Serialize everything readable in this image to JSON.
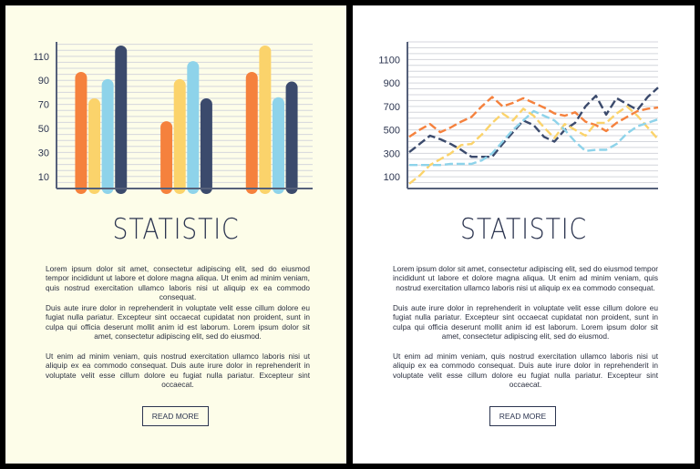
{
  "cards": [
    {
      "title": "STATISTIC",
      "paragraphs": [
        "Lorem ipsum dolor sit amet, consectetur adipiscing elit, sed do eiusmod tempor incididunt ut labore et dolore magna aliqua. Ut enim ad minim veniam, quis nostrud exercitation ullamco laboris nisi ut aliquip ex ea commodo consequat.",
        "Duis aute irure dolor in reprehenderit in voluptate velit esse cillum dolore eu fugiat nulla pariatur. Excepteur sint occaecat cupidatat non proident, sunt in culpa qui officia deserunt mollit anim id est laborum. Lorem ipsum dolor sit amet, consectetur adipiscing elit, sed do eiusmod.",
        "Ut enim ad minim veniam, quis nostrud exercitation ullamco laboris nisi ut aliquip ex ea commodo consequat. Duis aute irure dolor in reprehenderit in voluptate velit esse cillum dolore eu fugiat nulla pariatur. Excepteur sint occaecat."
      ],
      "button_label": "READ MORE"
    },
    {
      "title": "STATISTIC",
      "paragraphs": [
        "Lorem ipsum dolor sit amet, consectetur adipiscing elit, sed do eiusmod tempor incididunt ut labore et dolore magna aliqua. Ut enim ad minim veniam, quis nostrud exercitation ullamco laboris nisi ut aliquip ex ea commodo consequat.",
        "Duis aute irure dolor in reprehenderit in voluptate velit esse cillum dolore eu fugiat nulla pariatur. Excepteur sint occaecat cupidatat non proident, sunt in culpa qui officia deserunt mollit anim id est laborum. Lorem ipsum dolor sit amet, consectetur adipiscing elit, sed do eiusmod.",
        "Ut enim ad minim veniam, quis nostrud exercitation ullamco laboris nisi ut aliquip ex ea commodo consequat. Duis aute irure dolor in reprehenderit in voluptate velit esse cillum dolore eu fugiat nulla pariatur. Excepteur sint occaecat."
      ],
      "button_label": "READ MORE"
    }
  ],
  "chart_data": [
    {
      "type": "bar",
      "title": "",
      "xlabel": "",
      "ylabel": "",
      "categories": [
        "",
        "",
        ""
      ],
      "ylim": [
        0,
        122
      ],
      "yticks": [
        10,
        30,
        50,
        70,
        90,
        110
      ],
      "grid": true,
      "series": [
        {
          "color": "#f5813d",
          "values": [
            97,
            56,
            97
          ]
        },
        {
          "color": "#fbd36b",
          "values": [
            75,
            91,
            119
          ]
        },
        {
          "color": "#8ed3ea",
          "values": [
            91,
            106,
            76
          ]
        },
        {
          "color": "#3b4a6c",
          "values": [
            119,
            75,
            89
          ]
        }
      ]
    },
    {
      "type": "line",
      "title": "",
      "xlabel": "",
      "ylabel": "",
      "ylim": [
        0,
        1250
      ],
      "yticks": [
        100,
        300,
        500,
        700,
        900,
        1100
      ],
      "grid": true,
      "line_style": "dashed",
      "x": [
        0,
        1,
        2,
        3,
        4,
        5,
        6,
        7,
        8,
        9,
        10,
        11,
        12,
        13,
        14,
        15,
        16,
        17,
        18,
        19,
        20,
        21,
        22,
        23,
        24
      ],
      "series": [
        {
          "color": "#f5813d",
          "values": [
            440,
            500,
            550,
            480,
            520,
            570,
            610,
            700,
            780,
            700,
            730,
            770,
            730,
            690,
            640,
            620,
            650,
            570,
            540,
            490,
            560,
            610,
            660,
            680,
            690
          ]
        },
        {
          "color": "#3b4a6c",
          "values": [
            310,
            380,
            450,
            420,
            380,
            330,
            270,
            270,
            270,
            380,
            480,
            580,
            540,
            440,
            400,
            500,
            560,
            700,
            790,
            630,
            770,
            720,
            670,
            780,
            860
          ]
        },
        {
          "color": "#fbd36b",
          "values": [
            40,
            110,
            200,
            250,
            300,
            370,
            380,
            460,
            560,
            640,
            580,
            680,
            620,
            520,
            430,
            550,
            500,
            450,
            560,
            560,
            640,
            700,
            620,
            520,
            420
          ]
        },
        {
          "color": "#8ed3ea",
          "values": [
            200,
            200,
            200,
            200,
            210,
            210,
            210,
            240,
            300,
            400,
            500,
            580,
            660,
            620,
            580,
            500,
            400,
            320,
            330,
            330,
            380,
            470,
            530,
            560,
            590
          ]
        }
      ]
    }
  ]
}
